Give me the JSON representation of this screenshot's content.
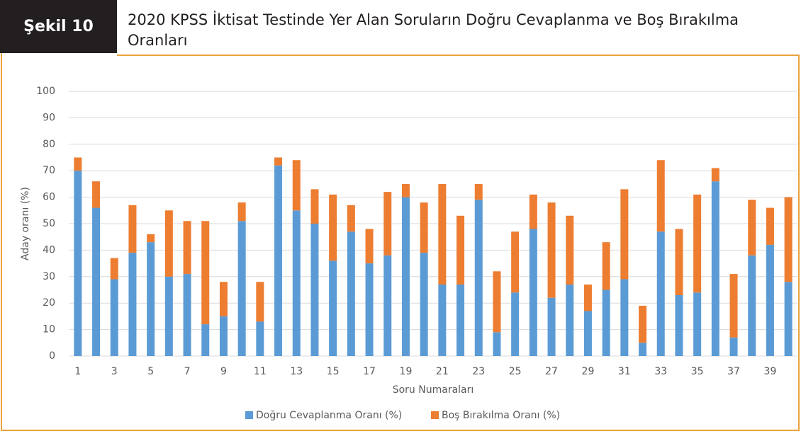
{
  "figure_label": "Şekil 10",
  "chart_data": {
    "type": "stacked_bar",
    "title": "2020 KPSS İktisat Testinde Yer Alan Soruların Doğru Cevaplanma ve Boş Bırakılma Oranları",
    "x_label": "Soru Numaraları",
    "y_label": "Aday oranı (%)",
    "categories": [
      1,
      null,
      3,
      null,
      5,
      null,
      7,
      null,
      9,
      null,
      11,
      null,
      13,
      null,
      15,
      null,
      17,
      null,
      19,
      null,
      21,
      null,
      23,
      null,
      25,
      null,
      27,
      null,
      29,
      null,
      31,
      null,
      33,
      null,
      35,
      null,
      37,
      null,
      39,
      null
    ],
    "series": [
      {
        "name": "Doğru Cevaplanma Oranı (%)",
        "color": "#5b9bd5",
        "values": [
          70,
          56,
          29,
          39,
          43,
          30,
          31,
          12,
          15,
          51,
          13,
          72,
          55,
          50,
          36,
          47,
          35,
          38,
          60,
          39,
          27,
          27,
          59,
          9,
          24,
          48,
          22,
          27,
          17,
          25,
          29,
          5,
          47,
          23,
          24,
          66,
          7,
          38,
          42,
          28
        ]
      },
      {
        "name": "Boş Bırakılma Oranı (%)",
        "color": "#ed7d31",
        "values": [
          5,
          10,
          8,
          18,
          3,
          25,
          20,
          39,
          13,
          7,
          15,
          3,
          19,
          13,
          25,
          10,
          13,
          24,
          5,
          19,
          38,
          26,
          6,
          23,
          23,
          13,
          36,
          26,
          10,
          18,
          34,
          14,
          27,
          25,
          37,
          5,
          24,
          21,
          14,
          32
        ]
      }
    ],
    "ylim": [
      0,
      100
    ],
    "yticks": [
      0,
      10,
      20,
      30,
      40,
      50,
      60,
      70,
      80,
      90,
      100
    ],
    "grid": true,
    "legend": "bottom"
  }
}
